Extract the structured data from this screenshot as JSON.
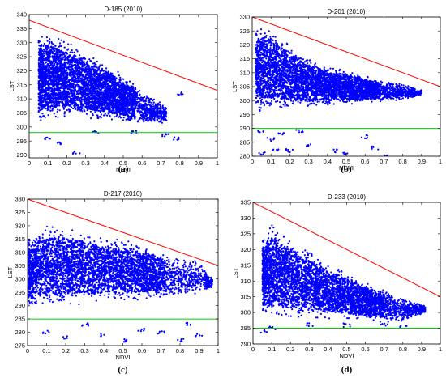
{
  "chart_data": [
    {
      "type": "scatter",
      "title": "D-185 (2010)",
      "caption": "(a)",
      "xlabel": "NDVI",
      "ylabel": "LST",
      "xlim": [
        0,
        1
      ],
      "ylim": [
        289,
        340
      ],
      "xticks": [
        0,
        0.1,
        0.2,
        0.3,
        0.4,
        0.5,
        0.6,
        0.7,
        0.8,
        0.9,
        1
      ],
      "xtick_labels": [
        "0",
        "0.1",
        "0.2",
        "0.3",
        "0.4",
        "0.5",
        "0.6",
        "0.7",
        "0.8",
        "0.9",
        "1"
      ],
      "yticks": [
        290,
        295,
        300,
        305,
        310,
        315,
        320,
        325,
        330,
        335,
        340
      ],
      "ytick_labels": [
        "290",
        "295",
        "300",
        "305",
        "310",
        "315",
        "320",
        "325",
        "330",
        "335",
        "340"
      ],
      "grid": false,
      "envelope": [
        [
          0.05,
          332.5
        ],
        [
          0.1,
          334
        ],
        [
          0.2,
          330.5
        ],
        [
          0.3,
          327
        ],
        [
          0.4,
          323
        ],
        [
          0.5,
          318.5
        ],
        [
          0.6,
          313
        ],
        [
          0.7,
          309
        ],
        [
          0.73,
          307.5
        ]
      ],
      "floor": [
        [
          0.05,
          302
        ],
        [
          0.2,
          303
        ],
        [
          0.4,
          302.5
        ],
        [
          0.6,
          301
        ],
        [
          0.73,
          301
        ]
      ],
      "outliers": [
        [
          0.1,
          296
        ],
        [
          0.15,
          294
        ],
        [
          0.25,
          291
        ],
        [
          0.35,
          298
        ],
        [
          0.55,
          298
        ],
        [
          0.72,
          297
        ],
        [
          0.78,
          296
        ],
        [
          0.8,
          312
        ]
      ],
      "series": [
        {
          "name": "",
          "type": "line",
          "color": "#ff0000",
          "x": [
            0,
            1
          ],
          "y": [
            338,
            313
          ]
        },
        {
          "name": "",
          "type": "line",
          "color": "#00cc00",
          "x": [
            0,
            1
          ],
          "y": [
            298,
            298
          ]
        }
      ],
      "point_color": "#0000ff"
    },
    {
      "type": "scatter",
      "title": "D-201 (2010)",
      "caption": "(b)",
      "xlabel": "NDVI",
      "ylabel": "LST",
      "xlim": [
        0,
        1
      ],
      "ylim": [
        280,
        330
      ],
      "xticks": [
        0,
        0.1,
        0.2,
        0.3,
        0.4,
        0.5,
        0.6,
        0.7,
        0.8,
        0.9,
        1
      ],
      "xtick_labels": [
        "0",
        "0.1",
        "0.2",
        "0.3",
        "0.4",
        "0.5",
        "0.6",
        "0.7",
        "0.8",
        "0.9",
        "1"
      ],
      "yticks": [
        280,
        285,
        290,
        295,
        300,
        305,
        310,
        315,
        320,
        325,
        330
      ],
      "ytick_labels": [
        "280",
        "285",
        "290",
        "295",
        "300",
        "305",
        "310",
        "315",
        "320",
        "325",
        "330"
      ],
      "grid": false,
      "envelope": [
        [
          0.02,
          326
        ],
        [
          0.1,
          327
        ],
        [
          0.2,
          320
        ],
        [
          0.3,
          315
        ],
        [
          0.4,
          313
        ],
        [
          0.5,
          311
        ],
        [
          0.6,
          309
        ],
        [
          0.7,
          307
        ],
        [
          0.8,
          306
        ],
        [
          0.9,
          304
        ]
      ],
      "floor": [
        [
          0.02,
          296
        ],
        [
          0.2,
          297
        ],
        [
          0.4,
          298
        ],
        [
          0.6,
          299
        ],
        [
          0.8,
          300
        ],
        [
          0.9,
          302
        ]
      ],
      "outliers": [
        [
          0.05,
          289
        ],
        [
          0.1,
          286
        ],
        [
          0.15,
          288
        ],
        [
          0.2,
          282
        ],
        [
          0.3,
          284
        ],
        [
          0.45,
          282
        ],
        [
          0.5,
          281
        ],
        [
          0.6,
          287
        ],
        [
          0.65,
          283
        ],
        [
          0.7,
          280
        ],
        [
          0.05,
          281
        ],
        [
          0.12,
          282
        ],
        [
          0.25,
          289
        ]
      ],
      "series": [
        {
          "name": "",
          "type": "line",
          "color": "#ff0000",
          "x": [
            0,
            1
          ],
          "y": [
            330,
            305
          ]
        },
        {
          "name": "",
          "type": "line",
          "color": "#00cc00",
          "x": [
            0,
            1
          ],
          "y": [
            290,
            290
          ]
        }
      ],
      "point_color": "#0000ff"
    },
    {
      "type": "scatter",
      "title": "D-217 (2010)",
      "caption": "(c)",
      "xlabel": "NDVI",
      "ylabel": "LST",
      "xlim": [
        0,
        1
      ],
      "ylim": [
        275,
        330
      ],
      "xticks": [
        0,
        0.1,
        0.2,
        0.3,
        0.4,
        0.5,
        0.6,
        0.7,
        0.8,
        0.9,
        1
      ],
      "xtick_labels": [
        "0",
        "0.1",
        "0.2",
        "0.3",
        "0.4",
        "0.5",
        "0.6",
        "0.7",
        "0.8",
        "0.9",
        "1"
      ],
      "yticks": [
        275,
        280,
        285,
        290,
        295,
        300,
        305,
        310,
        315,
        320,
        325,
        330
      ],
      "ytick_labels": [
        "275",
        "280",
        "285",
        "290",
        "295",
        "300",
        "305",
        "310",
        "315",
        "320",
        "325",
        "330"
      ],
      "grid": false,
      "envelope": [
        [
          0.0,
          316
        ],
        [
          0.1,
          320
        ],
        [
          0.2,
          320
        ],
        [
          0.3,
          318
        ],
        [
          0.4,
          316
        ],
        [
          0.5,
          315
        ],
        [
          0.6,
          313
        ],
        [
          0.7,
          310
        ],
        [
          0.8,
          308
        ],
        [
          0.9,
          307
        ],
        [
          0.97,
          300
        ]
      ],
      "floor": [
        [
          0.0,
          288
        ],
        [
          0.2,
          290
        ],
        [
          0.4,
          291
        ],
        [
          0.6,
          292
        ],
        [
          0.8,
          293
        ],
        [
          0.97,
          296
        ]
      ],
      "outliers": [
        [
          0.1,
          280
        ],
        [
          0.2,
          278
        ],
        [
          0.3,
          283
        ],
        [
          0.4,
          279
        ],
        [
          0.5,
          277
        ],
        [
          0.6,
          281
        ],
        [
          0.7,
          280
        ],
        [
          0.8,
          277
        ],
        [
          0.85,
          283
        ],
        [
          0.9,
          279
        ]
      ],
      "series": [
        {
          "name": "",
          "type": "line",
          "color": "#ff0000",
          "x": [
            0,
            1
          ],
          "y": [
            330,
            305
          ]
        },
        {
          "name": "",
          "type": "line",
          "color": "#00cc00",
          "x": [
            0,
            1
          ],
          "y": [
            285,
            285
          ]
        }
      ],
      "point_color": "#0000ff"
    },
    {
      "type": "scatter",
      "title": "D-233 (2010)",
      "caption": "(d)",
      "xlabel": "NDVI",
      "ylabel": "LST",
      "xlim": [
        0,
        1
      ],
      "ylim": [
        290,
        335
      ],
      "xticks": [
        0,
        0.1,
        0.2,
        0.3,
        0.4,
        0.5,
        0.6,
        0.7,
        0.8,
        0.9,
        1
      ],
      "xtick_labels": [
        "0",
        "0.1",
        "0.2",
        "0.3",
        "0.4",
        "0.5",
        "0.6",
        "0.7",
        "0.8",
        "0.9",
        "1"
      ],
      "yticks": [
        290,
        295,
        300,
        305,
        310,
        315,
        320,
        325,
        330,
        335
      ],
      "ytick_labels": [
        "290",
        "295",
        "300",
        "305",
        "310",
        "315",
        "320",
        "325",
        "330",
        "335"
      ],
      "grid": false,
      "envelope": [
        [
          0.05,
          325
        ],
        [
          0.1,
          328
        ],
        [
          0.2,
          324
        ],
        [
          0.3,
          320
        ],
        [
          0.4,
          316
        ],
        [
          0.5,
          313
        ],
        [
          0.6,
          310
        ],
        [
          0.7,
          307
        ],
        [
          0.8,
          305
        ],
        [
          0.92,
          302
        ]
      ],
      "floor": [
        [
          0.05,
          298
        ],
        [
          0.2,
          298
        ],
        [
          0.4,
          298
        ],
        [
          0.6,
          297
        ],
        [
          0.8,
          297
        ],
        [
          0.92,
          300
        ]
      ],
      "outliers": [
        [
          0.06,
          294
        ],
        [
          0.1,
          295
        ],
        [
          0.3,
          296
        ],
        [
          0.5,
          296
        ],
        [
          0.7,
          296
        ],
        [
          0.8,
          296
        ]
      ],
      "series": [
        {
          "name": "",
          "type": "line",
          "color": "#ff0000",
          "x": [
            0,
            1
          ],
          "y": [
            335,
            305
          ]
        },
        {
          "name": "",
          "type": "line",
          "color": "#00cc00",
          "x": [
            0,
            1
          ],
          "y": [
            295,
            295
          ]
        }
      ],
      "point_color": "#0000ff"
    }
  ]
}
